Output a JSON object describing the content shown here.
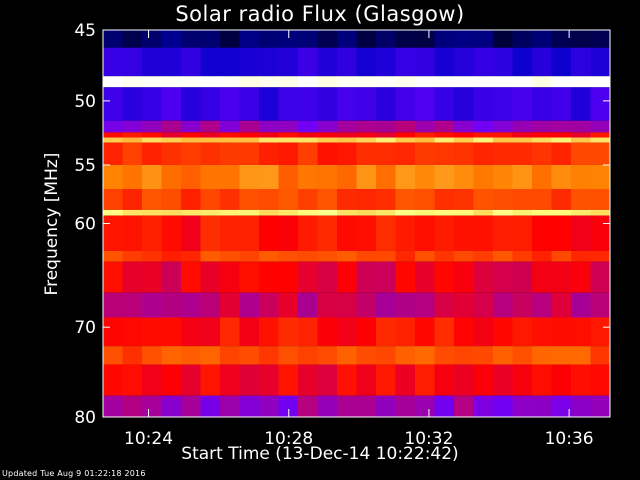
{
  "chart_data": {
    "type": "heatmap",
    "title": "Solar radio Flux (Glasgow)",
    "ylabel": "Frequency [MHz]",
    "xlabel": "Start Time (13-Dec-14 10:22:42)",
    "y_scale": "log",
    "y_range_mhz": [
      45,
      80
    ],
    "y_ticks": [
      45,
      50,
      55,
      60,
      70,
      80
    ],
    "y_tick_labels": [
      "45",
      "50",
      "55",
      "60",
      "70",
      "80"
    ],
    "x_range_seconds": [
      0,
      868
    ],
    "x_ticks": [
      "10:24",
      "10:28",
      "10:32",
      "10:36"
    ],
    "x_tick_seconds": [
      78,
      318,
      558,
      798
    ],
    "colormap": [
      "#000000",
      "#0000c8",
      "#6b00ff",
      "#ff0000",
      "#ff8000",
      "#ffff80",
      "#ffffff"
    ],
    "bands_mhz": [
      {
        "from": 45.0,
        "to": 46.2,
        "level": 0.08
      },
      {
        "from": 46.2,
        "to": 48.2,
        "level": 0.22
      },
      {
        "from": 48.2,
        "to": 49.0,
        "level": 1.0
      },
      {
        "from": 49.0,
        "to": 51.5,
        "level": 0.25
      },
      {
        "from": 51.5,
        "to": 52.4,
        "level": 0.38
      },
      {
        "from": 52.4,
        "to": 52.8,
        "level": 0.5
      },
      {
        "from": 52.8,
        "to": 53.2,
        "level": 0.78
      },
      {
        "from": 53.2,
        "to": 55.0,
        "level": 0.56
      },
      {
        "from": 55.0,
        "to": 57.0,
        "level": 0.66
      },
      {
        "from": 57.0,
        "to": 58.8,
        "level": 0.58
      },
      {
        "from": 58.8,
        "to": 59.3,
        "level": 0.82
      },
      {
        "from": 59.3,
        "to": 62.5,
        "level": 0.52
      },
      {
        "from": 62.5,
        "to": 63.5,
        "level": 0.58
      },
      {
        "from": 63.5,
        "to": 66.5,
        "level": 0.48
      },
      {
        "from": 66.5,
        "to": 69.0,
        "level": 0.44
      },
      {
        "from": 69.0,
        "to": 72.0,
        "level": 0.52
      },
      {
        "from": 72.0,
        "to": 74.0,
        "level": 0.6
      },
      {
        "from": 74.0,
        "to": 77.5,
        "level": 0.5
      },
      {
        "from": 77.5,
        "to": 80.0,
        "level": 0.38
      }
    ]
  },
  "footer": {
    "updated": "Updated Tue Aug  9 01:22:18 2016"
  }
}
